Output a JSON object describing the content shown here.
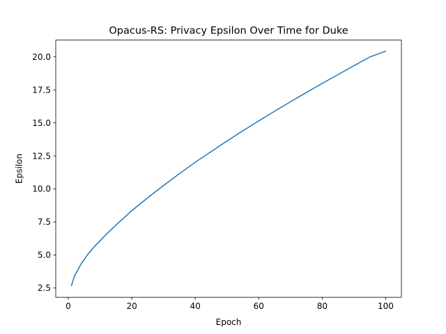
{
  "chart_data": {
    "type": "line",
    "title": "Opacus-RS: Privacy Epsilon Over Time for Duke",
    "xlabel": "Epoch",
    "ylabel": "Epsilon",
    "xlim": [
      -3.95,
      104.95
    ],
    "ylim": [
      1.8,
      21.27
    ],
    "xticks": [
      0,
      20,
      40,
      60,
      80,
      100
    ],
    "xtick_labels": [
      "0",
      "20",
      "40",
      "60",
      "80",
      "100"
    ],
    "yticks": [
      2.5,
      5.0,
      7.5,
      10.0,
      12.5,
      15.0,
      17.5,
      20.0
    ],
    "ytick_labels": [
      "2.5",
      "5.0",
      "7.5",
      "10.0",
      "12.5",
      "15.0",
      "17.5",
      "20.0"
    ],
    "grid": false,
    "legend": "none",
    "series_color": "#1f77b4",
    "series": [
      {
        "x": [
          1,
          2,
          3,
          4,
          5,
          6,
          7,
          8,
          10,
          12,
          15,
          20,
          25,
          30,
          35,
          40,
          45,
          50,
          55,
          60,
          65,
          70,
          75,
          80,
          85,
          90,
          95,
          100
        ],
        "y": [
          2.69,
          3.45,
          3.86,
          4.31,
          4.66,
          5.01,
          5.29,
          5.58,
          6.08,
          6.58,
          7.26,
          8.35,
          9.33,
          10.26,
          11.15,
          12.02,
          12.83,
          13.63,
          14.4,
          15.15,
          15.88,
          16.6,
          17.3,
          17.99,
          18.66,
          19.33,
          19.99,
          20.43
        ]
      }
    ]
  }
}
